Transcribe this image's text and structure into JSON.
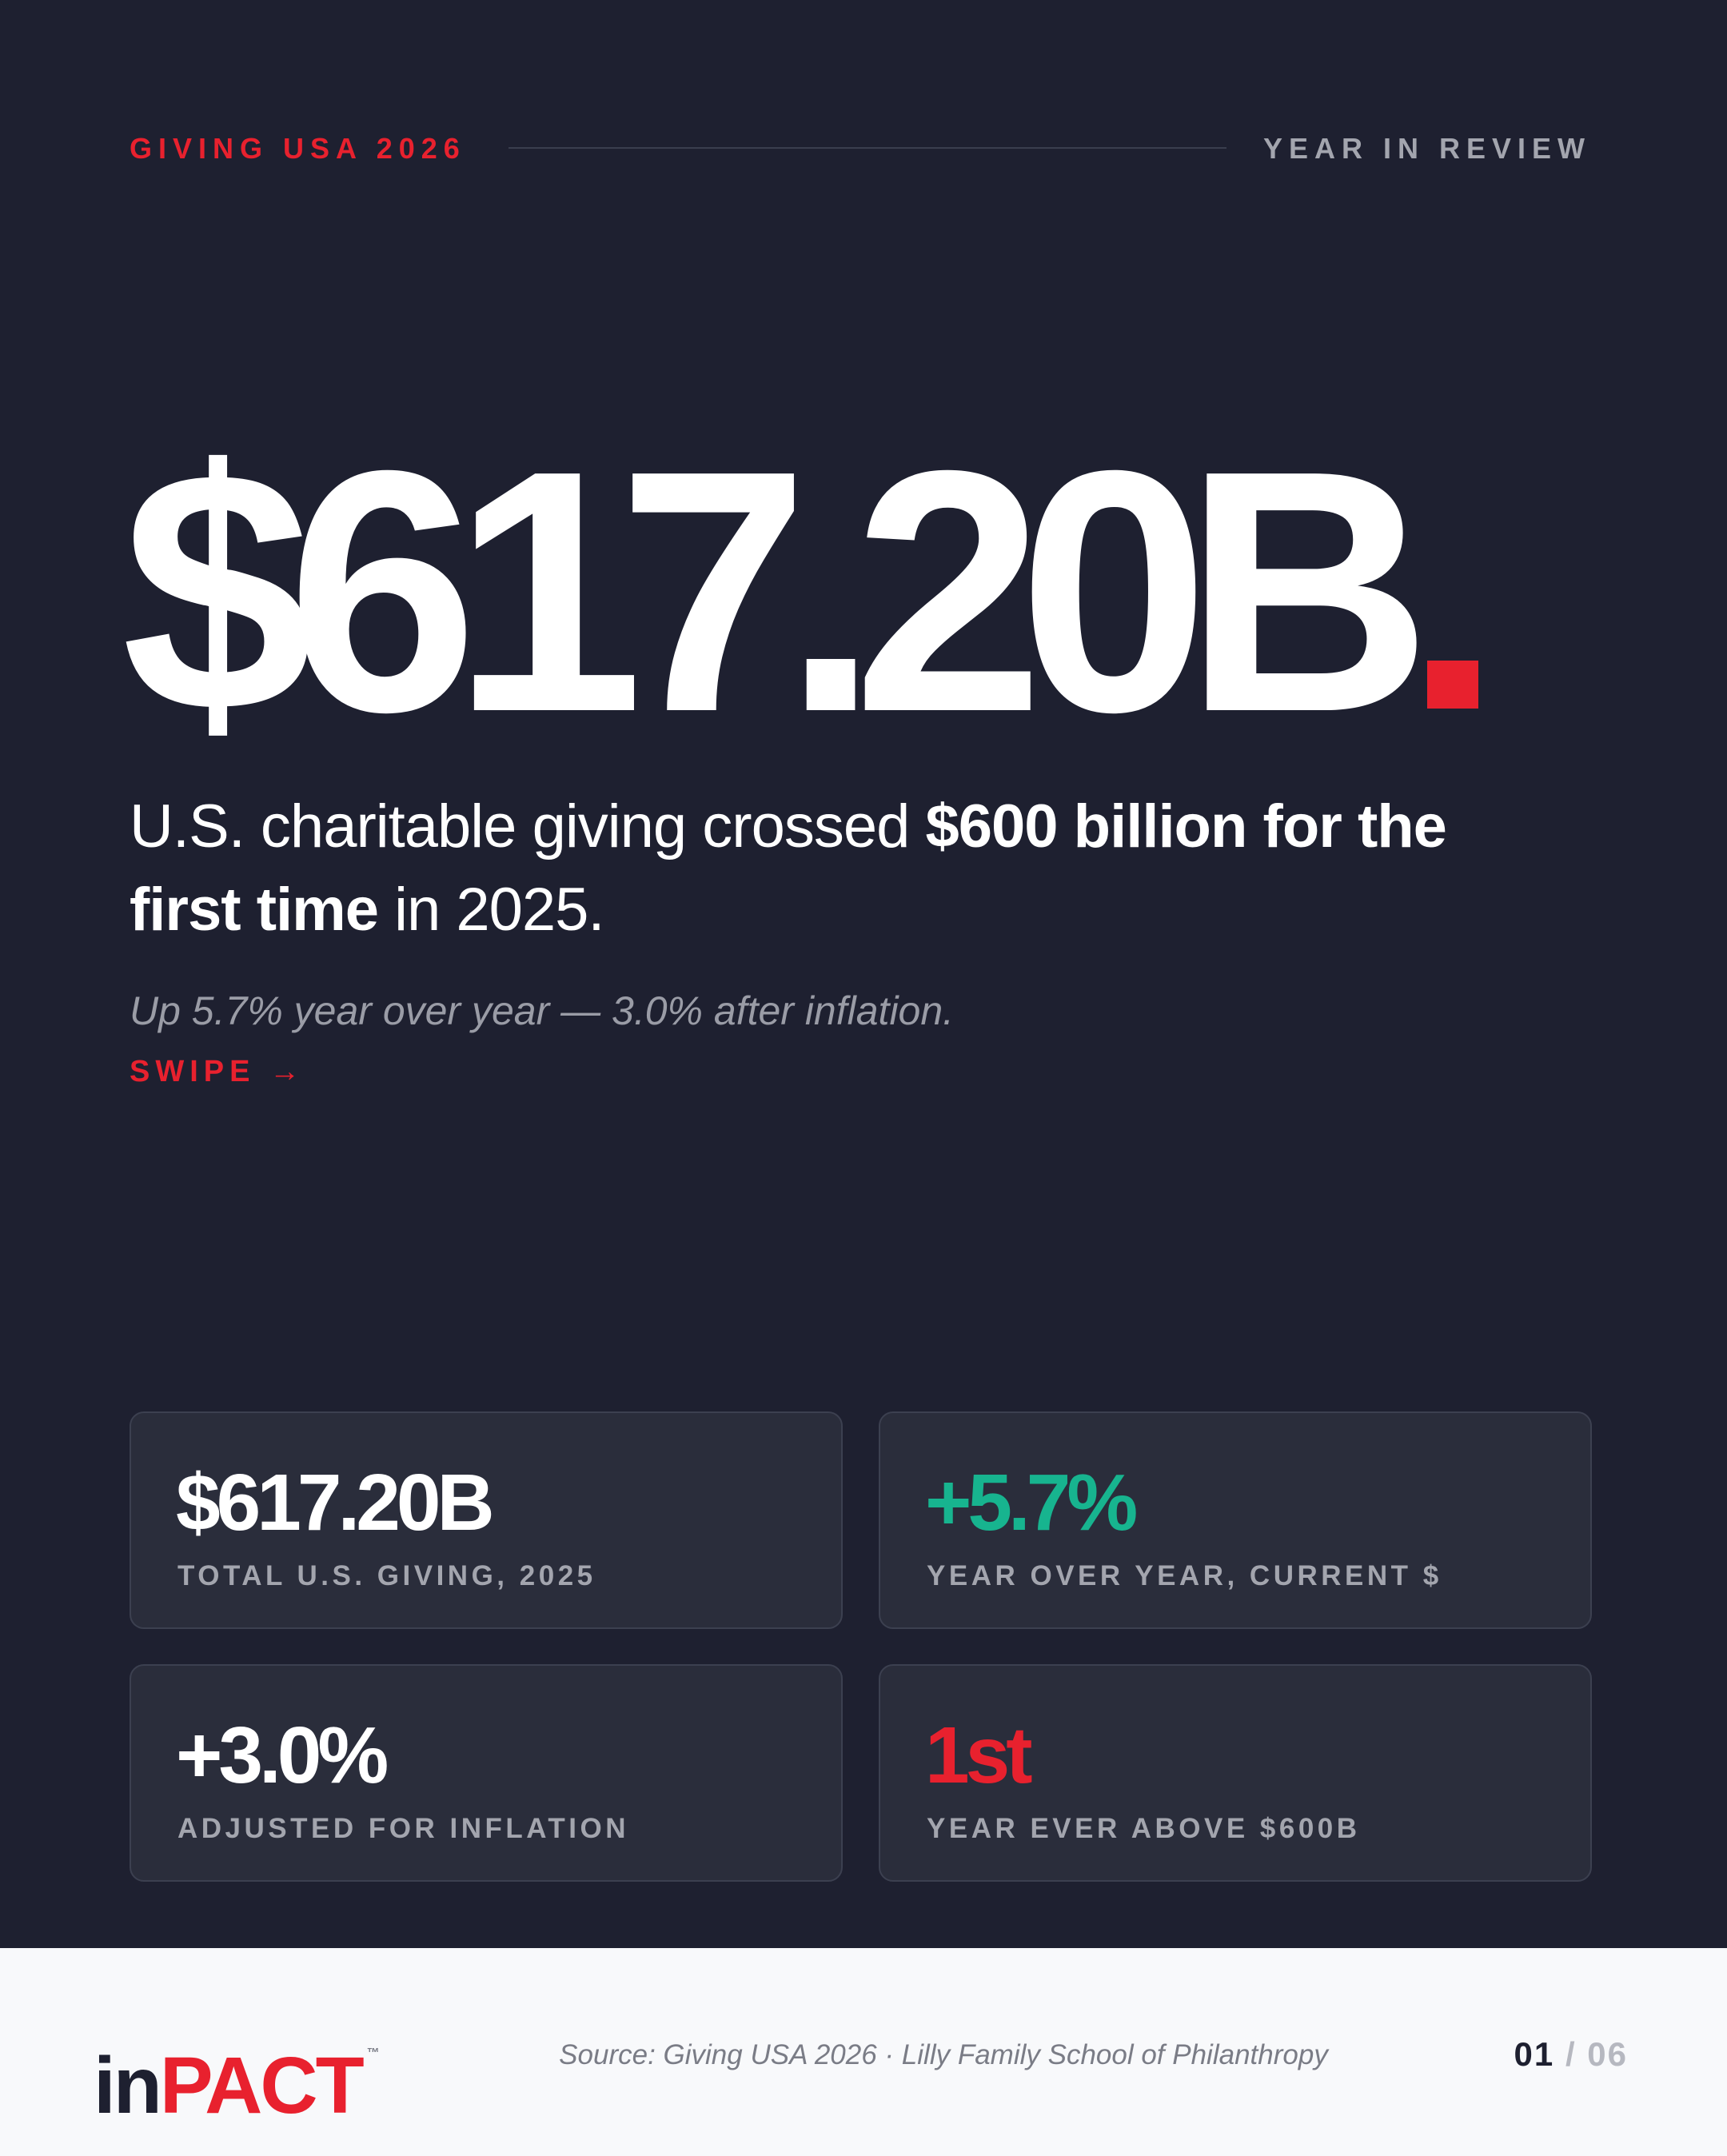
{
  "header": {
    "kicker": "GIVING USA 2026",
    "section": "YEAR IN REVIEW"
  },
  "hero": {
    "figure": "$617.20B"
  },
  "headline": {
    "lead": "U.S. charitable giving crossed ",
    "emphasis": "$600 billion for the first time",
    "tail": " in 2025."
  },
  "subline": "Up 5.7% year over year — 3.0% after inflation.",
  "cta": "SWIPE →",
  "stats": [
    {
      "value": "$617.20B",
      "label": "TOTAL U.S. GIVING, 2025"
    },
    {
      "value": "+5.7%",
      "label": "YEAR OVER YEAR, CURRENT $"
    },
    {
      "value": "+3.0%",
      "label": "ADJUSTED FOR INFLATION"
    },
    {
      "value": "1st",
      "label": "YEAR EVER ABOVE $600B"
    }
  ],
  "footer": {
    "logo": {
      "first": "in",
      "second": "PACT",
      "mark": "™"
    },
    "source": "Source: Giving USA 2026 · Lilly Family School of Philanthropy",
    "page": {
      "current": "01",
      "separator": "/",
      "total": "06"
    }
  }
}
